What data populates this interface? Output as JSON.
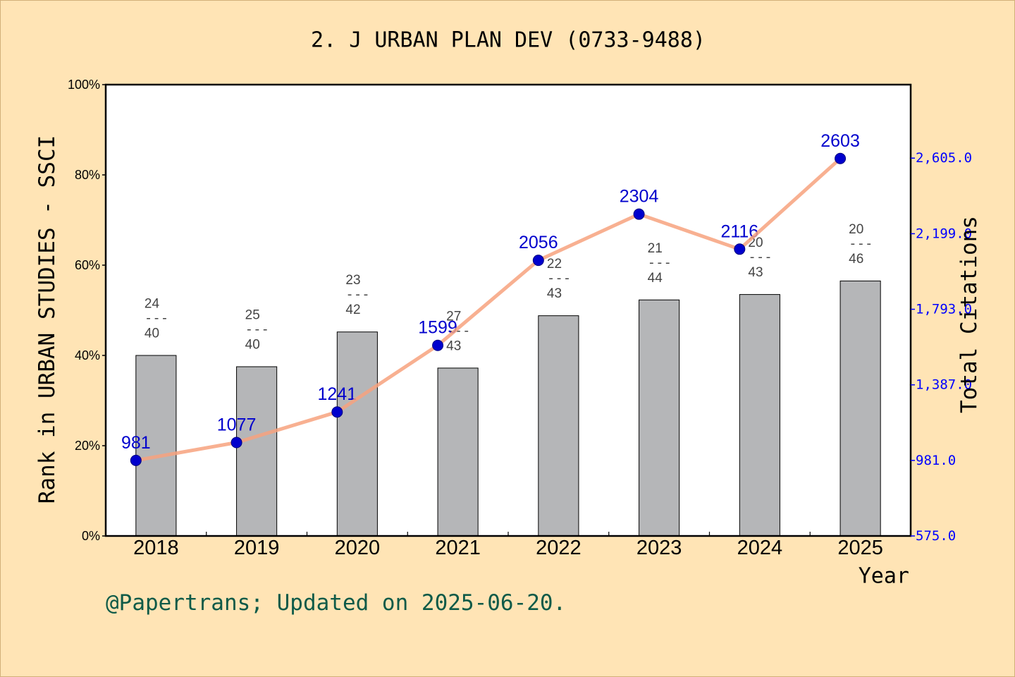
{
  "footer": "@Papertrans; Updated on 2025-06-20.",
  "colors": {
    "background": "#FFE4B5",
    "page_border": "#D2B07A",
    "plot_background": "#FFFFFF",
    "bar": "#B5B6B8",
    "bar_edge": "#000000",
    "line": "#F7A27E",
    "points": "#0000CD",
    "point_edge": "#000080",
    "citation_labels": "#0000CD",
    "rank_labels": "#444444",
    "right_axis": "#0000FF",
    "footer": "#0E5A48"
  },
  "chart_data": {
    "type": "bar",
    "title": "2. J URBAN PLAN DEV (0733-9488)",
    "xlabel": "Year",
    "ylabel": "Rank in URBAN STUDIES - SSCI",
    "ylabel_right": "Total Citations",
    "categories": [
      "2018",
      "2019",
      "2020",
      "2021",
      "2022",
      "2023",
      "2024",
      "2025"
    ],
    "ylim": [
      0,
      100
    ],
    "yticks": [
      0,
      20,
      40,
      60,
      80,
      100
    ],
    "ytick_labels": [
      "0%",
      "20%",
      "40%",
      "60%",
      "80%",
      "100%"
    ],
    "ylim_right": [
      575,
      3000
    ],
    "yticks_right": [
      575,
      981,
      1387,
      1793,
      2199,
      2605
    ],
    "ytick_labels_right": [
      "575.0",
      "981.0",
      "1,387.0",
      "1,793.0",
      "2,199.0",
      "2,605.0"
    ],
    "rank_separator": "---",
    "grid": false,
    "series": [
      {
        "type": "bar",
        "values": [
          40.0,
          37.5,
          45.2,
          37.2,
          48.8,
          52.3,
          53.5,
          56.5
        ],
        "ranks": [
          24,
          25,
          23,
          27,
          22,
          21,
          20,
          20
        ],
        "totals": [
          40,
          40,
          42,
          43,
          43,
          44,
          43,
          46
        ]
      },
      {
        "type": "line",
        "values": [
          981,
          1077,
          1241,
          1599,
          2056,
          2304,
          2116,
          2603
        ]
      }
    ]
  }
}
